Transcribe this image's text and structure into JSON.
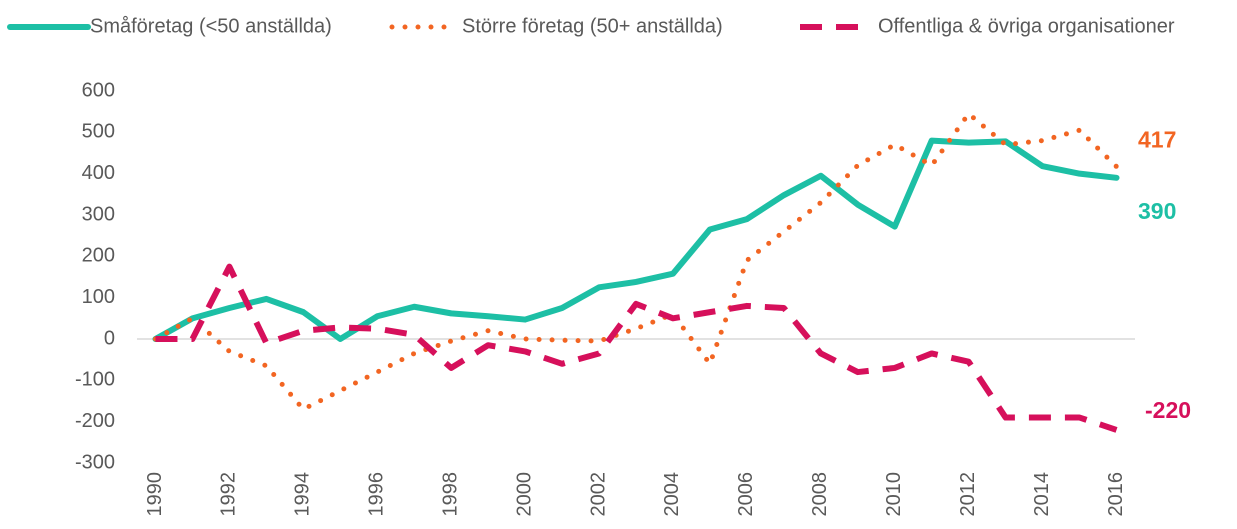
{
  "chart_data": {
    "type": "line",
    "categories": [
      "1990",
      null,
      "1992",
      null,
      "1994",
      null,
      "1996",
      null,
      "1998",
      null,
      "2000",
      null,
      "2002",
      null,
      "2004",
      null,
      "2006",
      null,
      "2008",
      null,
      "2010",
      null,
      "2012",
      null,
      "2014",
      null,
      "2016"
    ],
    "series": [
      {
        "name": "Småföretag (<50 anställda)",
        "color": "#1dbfa5",
        "style": "solid",
        "values": [
          0,
          50,
          75,
          97,
          65,
          0,
          55,
          78,
          62,
          55,
          47,
          75,
          125,
          138,
          158,
          265,
          290,
          348,
          395,
          325,
          272,
          480,
          475,
          478,
          418,
          400,
          390
        ]
      },
      {
        "name": "Större företag (50+ anställda)",
        "color": "#f26522",
        "style": "dotted",
        "values": [
          0,
          50,
          -30,
          -65,
          -170,
          -125,
          -80,
          -35,
          -5,
          20,
          0,
          -3,
          -5,
          25,
          60,
          -60,
          190,
          260,
          330,
          420,
          470,
          420,
          545,
          470,
          480,
          505,
          417
        ]
      },
      {
        "name": "Offentliga & övriga organisationer",
        "color": "#d6105b",
        "style": "dashed",
        "values": [
          0,
          0,
          175,
          -10,
          20,
          28,
          25,
          10,
          -70,
          -15,
          -30,
          -60,
          -35,
          85,
          50,
          65,
          80,
          75,
          -35,
          -80,
          -70,
          -35,
          -55,
          -190,
          -190,
          -190,
          -220
        ]
      }
    ],
    "ylim": [
      -300,
      600
    ],
    "yticks": [
      -300,
      -200,
      -100,
      0,
      100,
      200,
      300,
      400,
      500,
      600
    ],
    "legend": "top"
  }
}
